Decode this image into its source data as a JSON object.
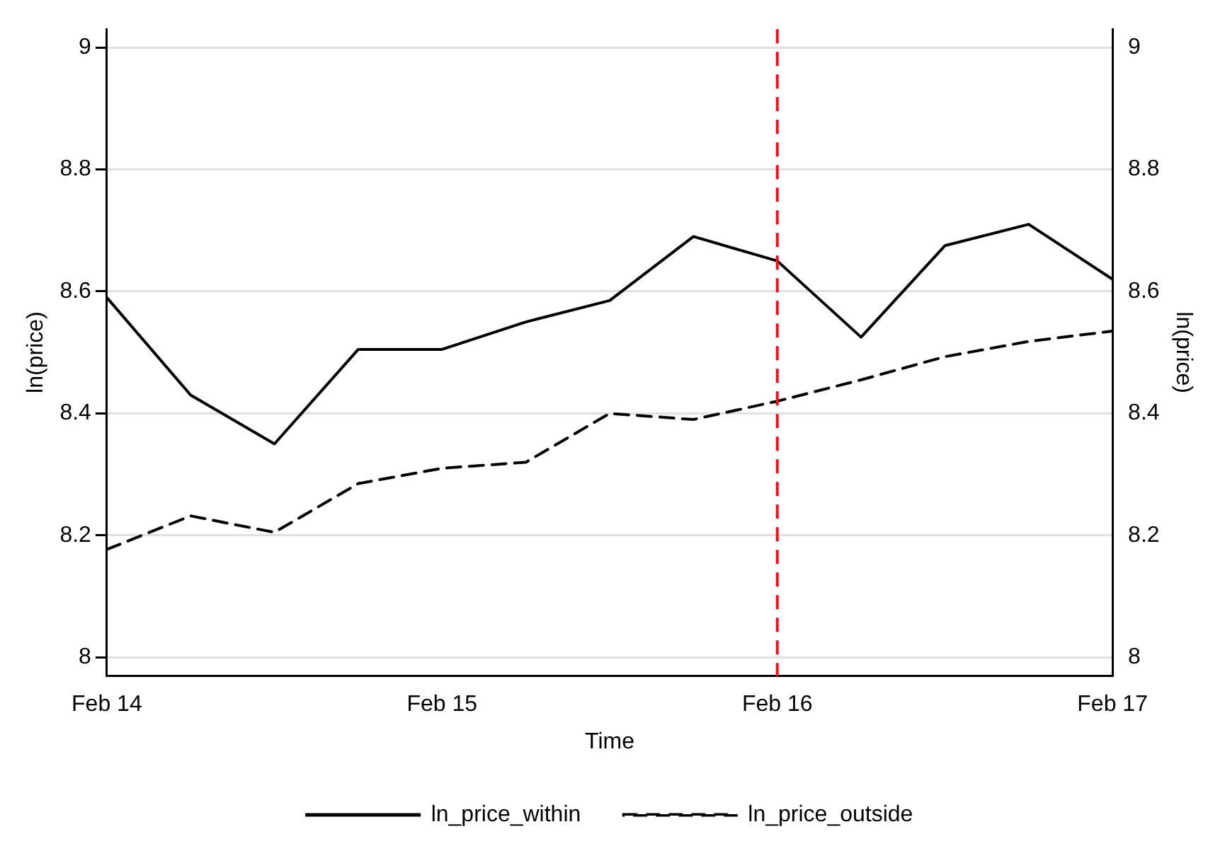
{
  "chart_data": {
    "type": "line",
    "xlabel": "Time",
    "ylabel": "ln(price)",
    "y2label": "ln(price)",
    "categories": [
      "Feb 14",
      null,
      null,
      null,
      "Feb 15",
      null,
      null,
      null,
      "Feb 16",
      null,
      null,
      null,
      "Feb 17"
    ],
    "series": [
      {
        "name": "ln_price_within",
        "color": "#000000",
        "line_style": "solid",
        "values": [
          8.59,
          8.43,
          8.35,
          8.505,
          8.505,
          8.55,
          8.585,
          8.69,
          8.65,
          8.525,
          8.675,
          8.71,
          8.62
        ]
      },
      {
        "name": "ln_price_outside",
        "color": "#000000",
        "line_style": "dashed",
        "values": [
          8.177,
          8.232,
          8.205,
          8.285,
          8.31,
          8.32,
          8.4,
          8.39,
          8.42,
          8.455,
          8.493,
          8.518,
          8.535
        ]
      }
    ],
    "ylim": [
      7.97,
      9.03
    ],
    "yticks": [
      8,
      8.2,
      8.4,
      8.6,
      8.8,
      9
    ],
    "y2lim": [
      7.97,
      9.03
    ],
    "y2ticks": [
      8,
      8.2,
      8.4,
      8.6,
      8.8,
      9
    ],
    "ref_lines": [
      {
        "axis": "x",
        "value": "Feb 16",
        "color": "#e8141e",
        "line_style": "dashed"
      }
    ],
    "grid": "y",
    "legend": "bottom",
    "marker": "none"
  }
}
